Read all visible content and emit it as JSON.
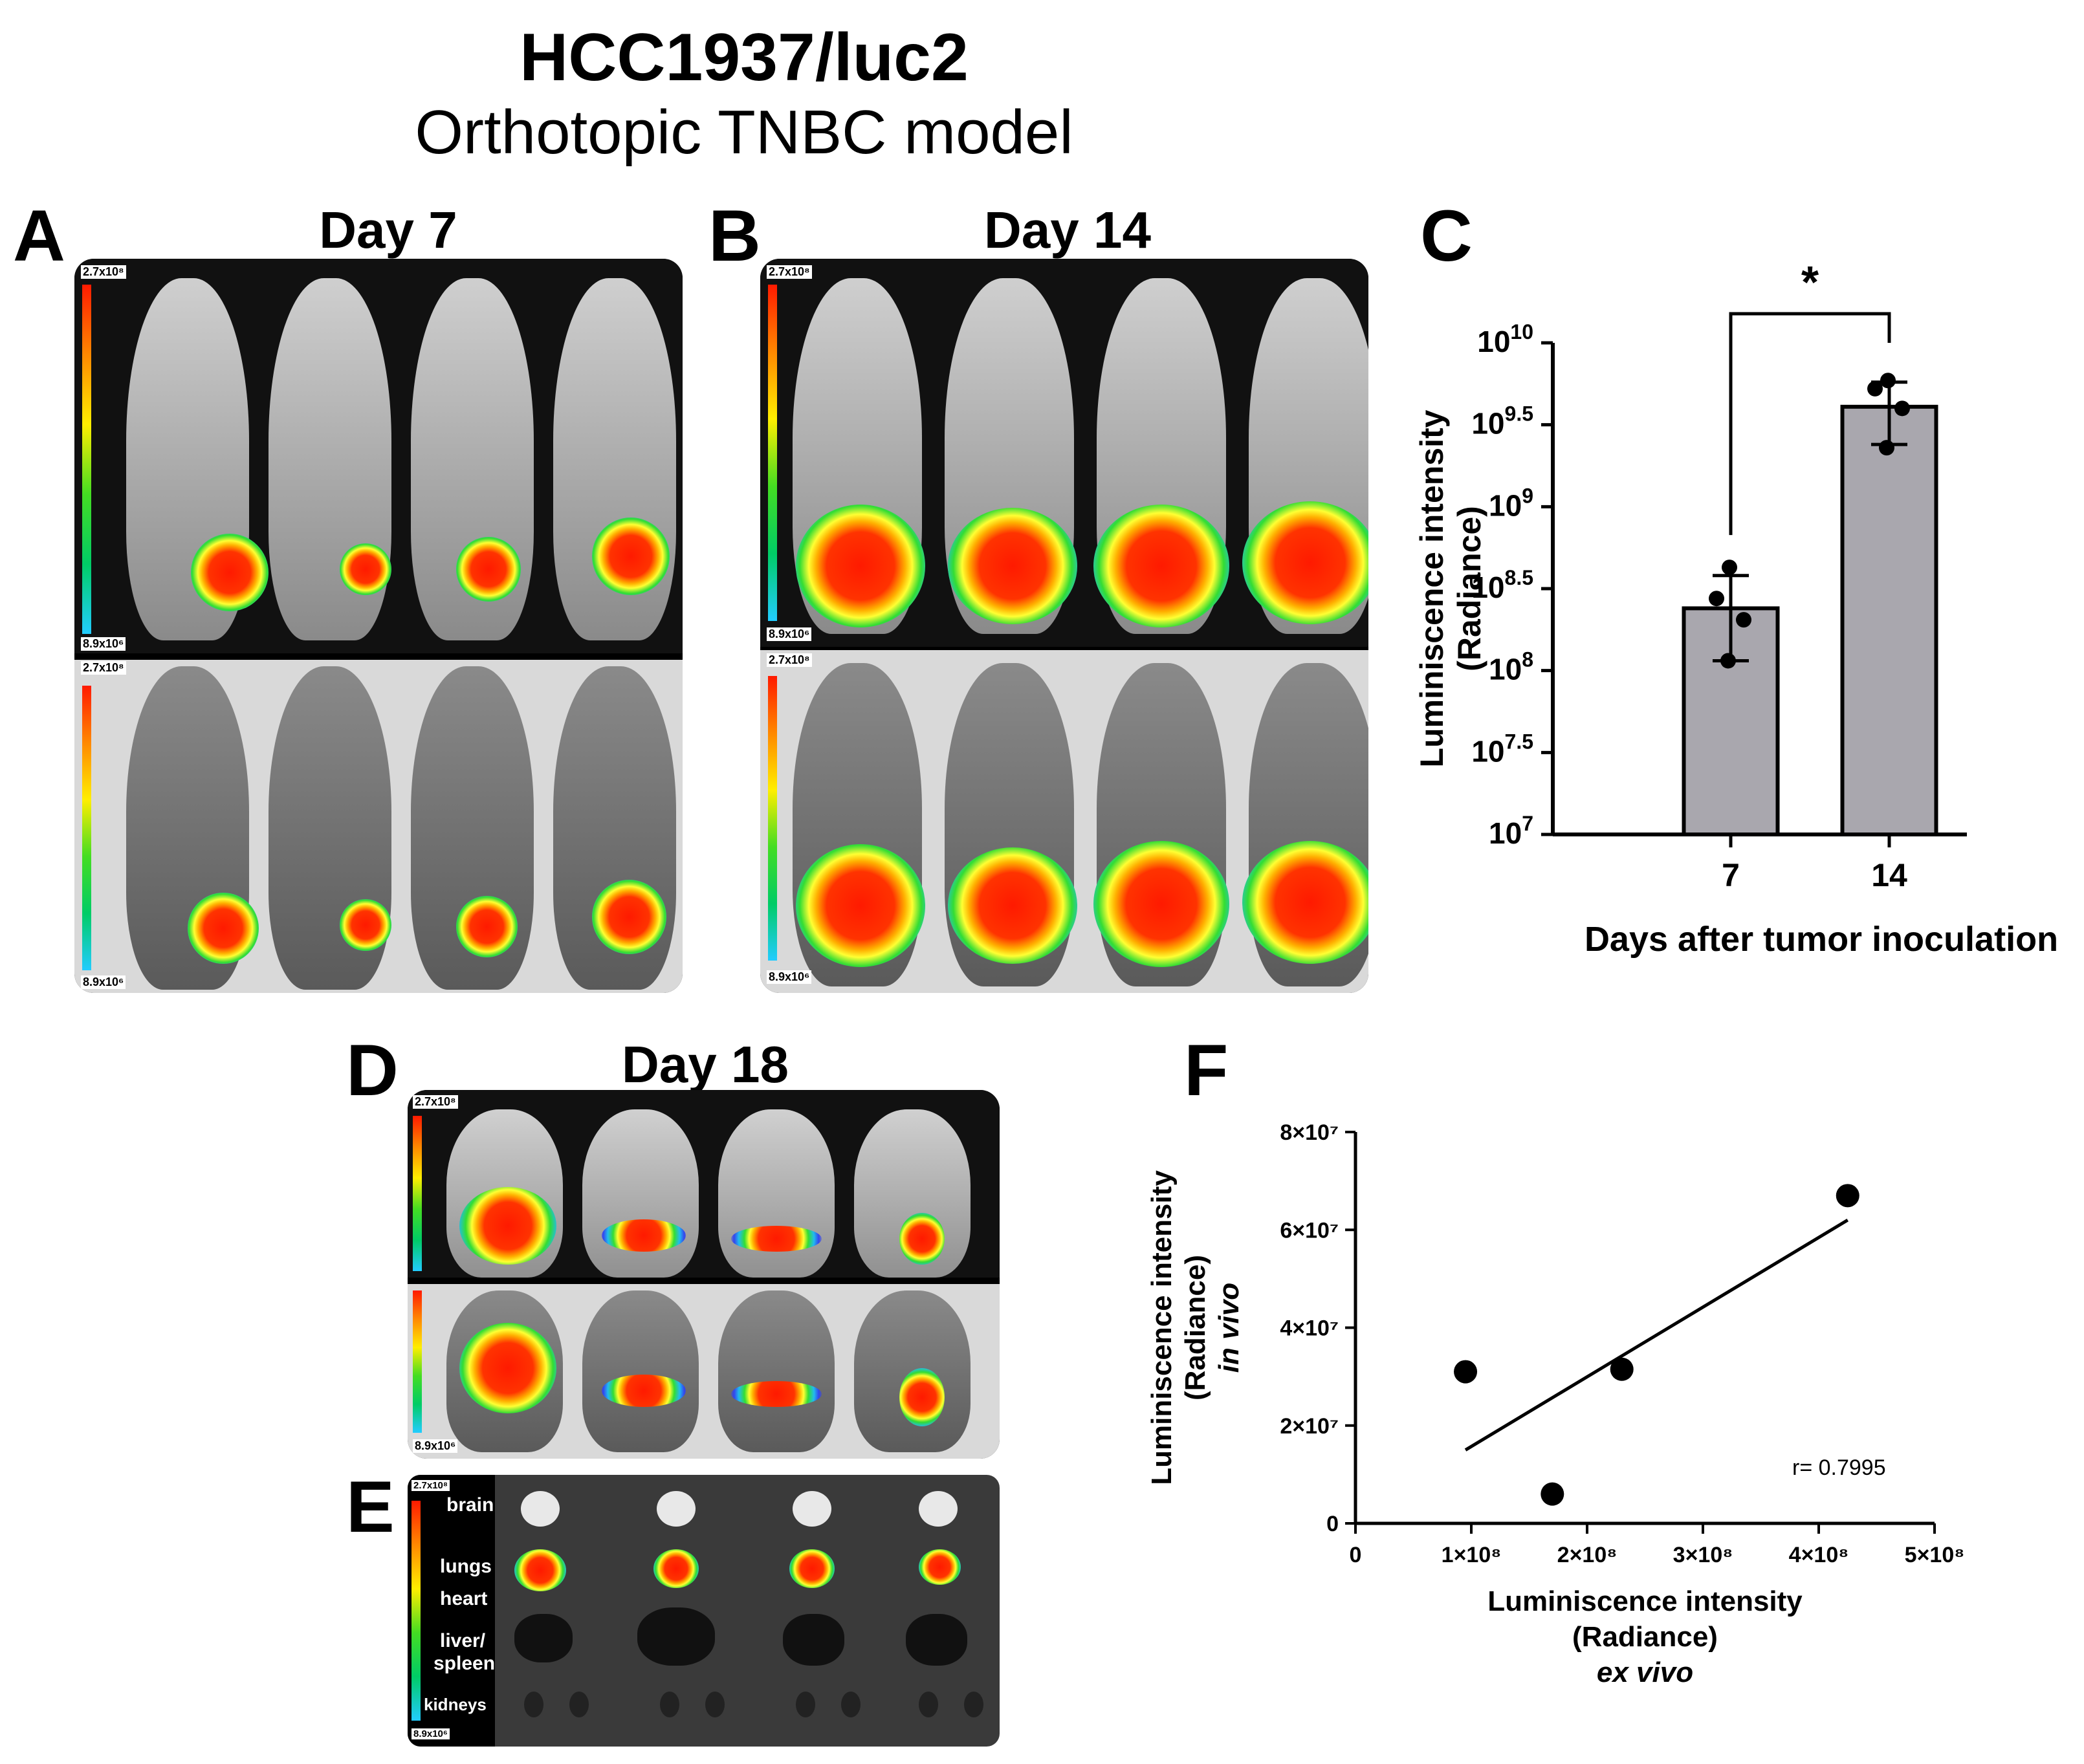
{
  "figure": {
    "title": "HCC1937/luc2",
    "subtitle": "Orthotopic TNBC model"
  },
  "panels": {
    "A": {
      "letter": "A",
      "day": "Day 7"
    },
    "B": {
      "letter": "B",
      "day": "Day 14"
    },
    "C": {
      "letter": "C"
    },
    "D": {
      "letter": "D",
      "day": "Day 18"
    },
    "E": {
      "letter": "E"
    },
    "F": {
      "letter": "F"
    }
  },
  "scale": {
    "max": "2.7x10⁸",
    "min": "8.9x10⁶"
  },
  "organs": [
    "brain",
    "lungs",
    "heart",
    "liver/",
    "spleen",
    "kidneys"
  ],
  "colors": {
    "bar_fill": "#a9a7ae",
    "background_image": "#000000"
  },
  "chart_data": [
    {
      "type": "bar",
      "panel": "C",
      "categories": [
        "7",
        "14"
      ],
      "values": [
        8.38,
        9.61
      ],
      "error_high": [
        8.58,
        9.76
      ],
      "error_low": [
        8.06,
        9.38
      ],
      "points": [
        [
          8.63,
          8.44,
          8.31,
          8.06
        ],
        [
          9.77,
          9.72,
          9.6,
          9.36
        ]
      ],
      "yscale": "log10",
      "ylim": [
        7,
        10
      ],
      "yticks": [
        {
          "base": "10",
          "exp": "7",
          "value": 7
        },
        {
          "base": "10",
          "exp": "7.5",
          "value": 7.5
        },
        {
          "base": "10",
          "exp": "8",
          "value": 8
        },
        {
          "base": "10",
          "exp": "8.5",
          "value": 8.5
        },
        {
          "base": "10",
          "exp": "9",
          "value": 9
        },
        {
          "base": "10",
          "exp": "9.5",
          "value": 9.5
        },
        {
          "base": "10",
          "exp": "10",
          "value": 10
        }
      ],
      "ylabel_line1": "Luminiscence intensity",
      "ylabel_line2": "(Radiance)",
      "xlabel": "Days after tumor inoculation",
      "significance": "*"
    },
    {
      "type": "scatter",
      "panel": "F",
      "x": [
        95000000,
        170000000,
        230000000,
        425000000
      ],
      "y": [
        31000000,
        6000000,
        31500000,
        67000000
      ],
      "fit_line": {
        "x1": 95000000,
        "y1": 15000000,
        "x2": 425000000,
        "y2": 62000000
      },
      "xlim": [
        0,
        500000000
      ],
      "ylim": [
        0,
        80000000
      ],
      "xticks": [
        {
          "label": "0",
          "value": 0
        },
        {
          "label": "1×10⁸",
          "value": 100000000
        },
        {
          "label": "2×10⁸",
          "value": 200000000
        },
        {
          "label": "3×10⁸",
          "value": 300000000
        },
        {
          "label": "4×10⁸",
          "value": 400000000
        },
        {
          "label": "5×10⁸",
          "value": 500000000
        }
      ],
      "yticks": [
        {
          "label": "0",
          "value": 0
        },
        {
          "label": "2×10⁷",
          "value": 20000000
        },
        {
          "label": "4×10⁷",
          "value": 40000000
        },
        {
          "label": "6×10⁷",
          "value": 60000000
        },
        {
          "label": "8×10⁷",
          "value": 80000000
        }
      ],
      "xlabel_line1": "Luminiscence intensity",
      "xlabel_line2": "(Radiance)",
      "xlabel_line3": "ex vivo",
      "ylabel_line1": "Luminiscence intensity",
      "ylabel_line2": "(Radiance)",
      "ylabel_line3": "in vivo",
      "annotation": "r= 0.7995"
    }
  ]
}
